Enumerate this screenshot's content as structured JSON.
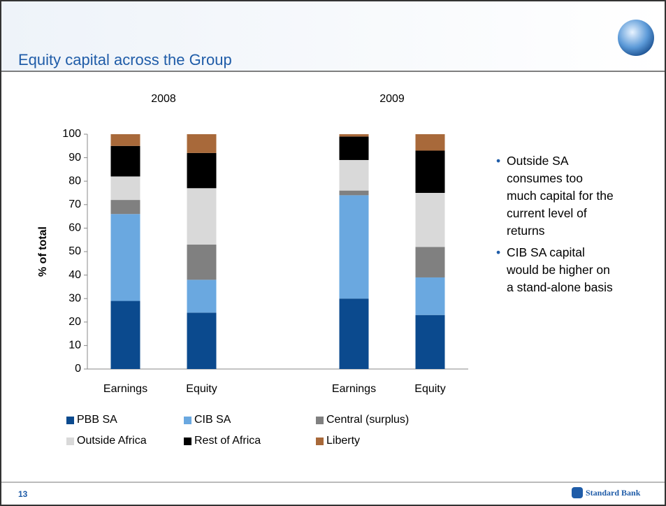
{
  "slide": {
    "title": "Equity capital across the Group",
    "page_number": "13",
    "logo": "Standard Bank",
    "bullets": [
      "Outside SA consumes too much capital for the current level of returns",
      "CIB SA capital would be higher on a stand-alone basis"
    ]
  },
  "chart_data": {
    "type": "bar",
    "stacked": true,
    "annotations": [
      "2008",
      "2009"
    ],
    "ylabel": "% of total",
    "categories": [
      "Earnings",
      "Equity",
      null,
      "Earnings",
      "Equity"
    ],
    "series": [
      {
        "name": "PBB SA",
        "color": "#0b4a8e",
        "values": [
          29,
          24,
          null,
          30,
          23
        ]
      },
      {
        "name": "CIB SA",
        "color": "#6aa8e0",
        "values": [
          37,
          14,
          null,
          44,
          16
        ]
      },
      {
        "name": "Central (surplus)",
        "color": "#808080",
        "values": [
          6,
          15,
          null,
          2,
          13
        ]
      },
      {
        "name": "Outside Africa",
        "color": "#d9d9d9",
        "values": [
          10,
          24,
          null,
          13,
          23
        ]
      },
      {
        "name": "Rest of Africa",
        "color": "#000000",
        "values": [
          13,
          15,
          null,
          10,
          18
        ]
      },
      {
        "name": "Liberty",
        "color": "#a8693a",
        "values": [
          5,
          8,
          null,
          1,
          7
        ]
      }
    ],
    "ylim": [
      0,
      100
    ],
    "yticks": [
      0,
      10,
      20,
      30,
      40,
      50,
      60,
      70,
      80,
      90,
      100
    ],
    "legend": "bottom"
  }
}
